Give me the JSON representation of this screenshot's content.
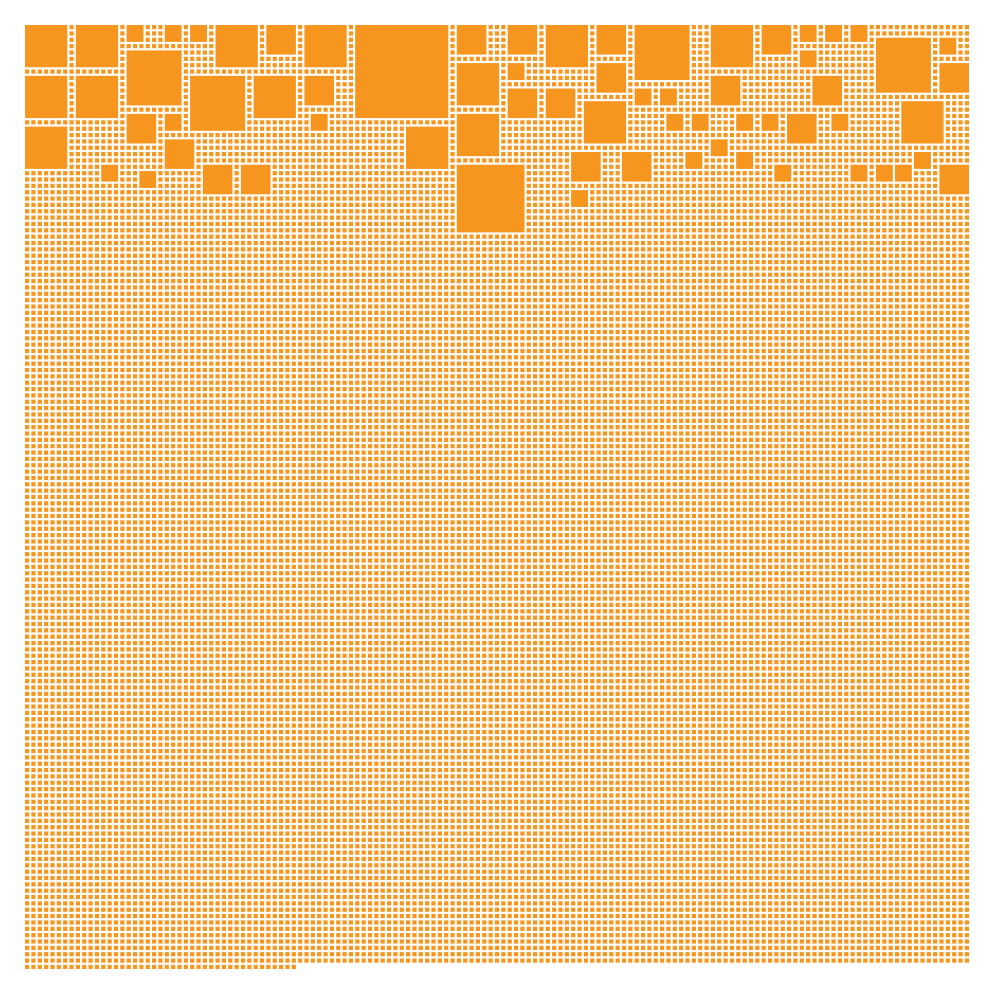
{
  "mosaic": {
    "fill_color": "#F7961E",
    "background_color": "#FFFFFF",
    "shape": "square",
    "grid_columns": 149,
    "grid_rows": 149,
    "filled_cells_in_last_row": 43
  }
}
